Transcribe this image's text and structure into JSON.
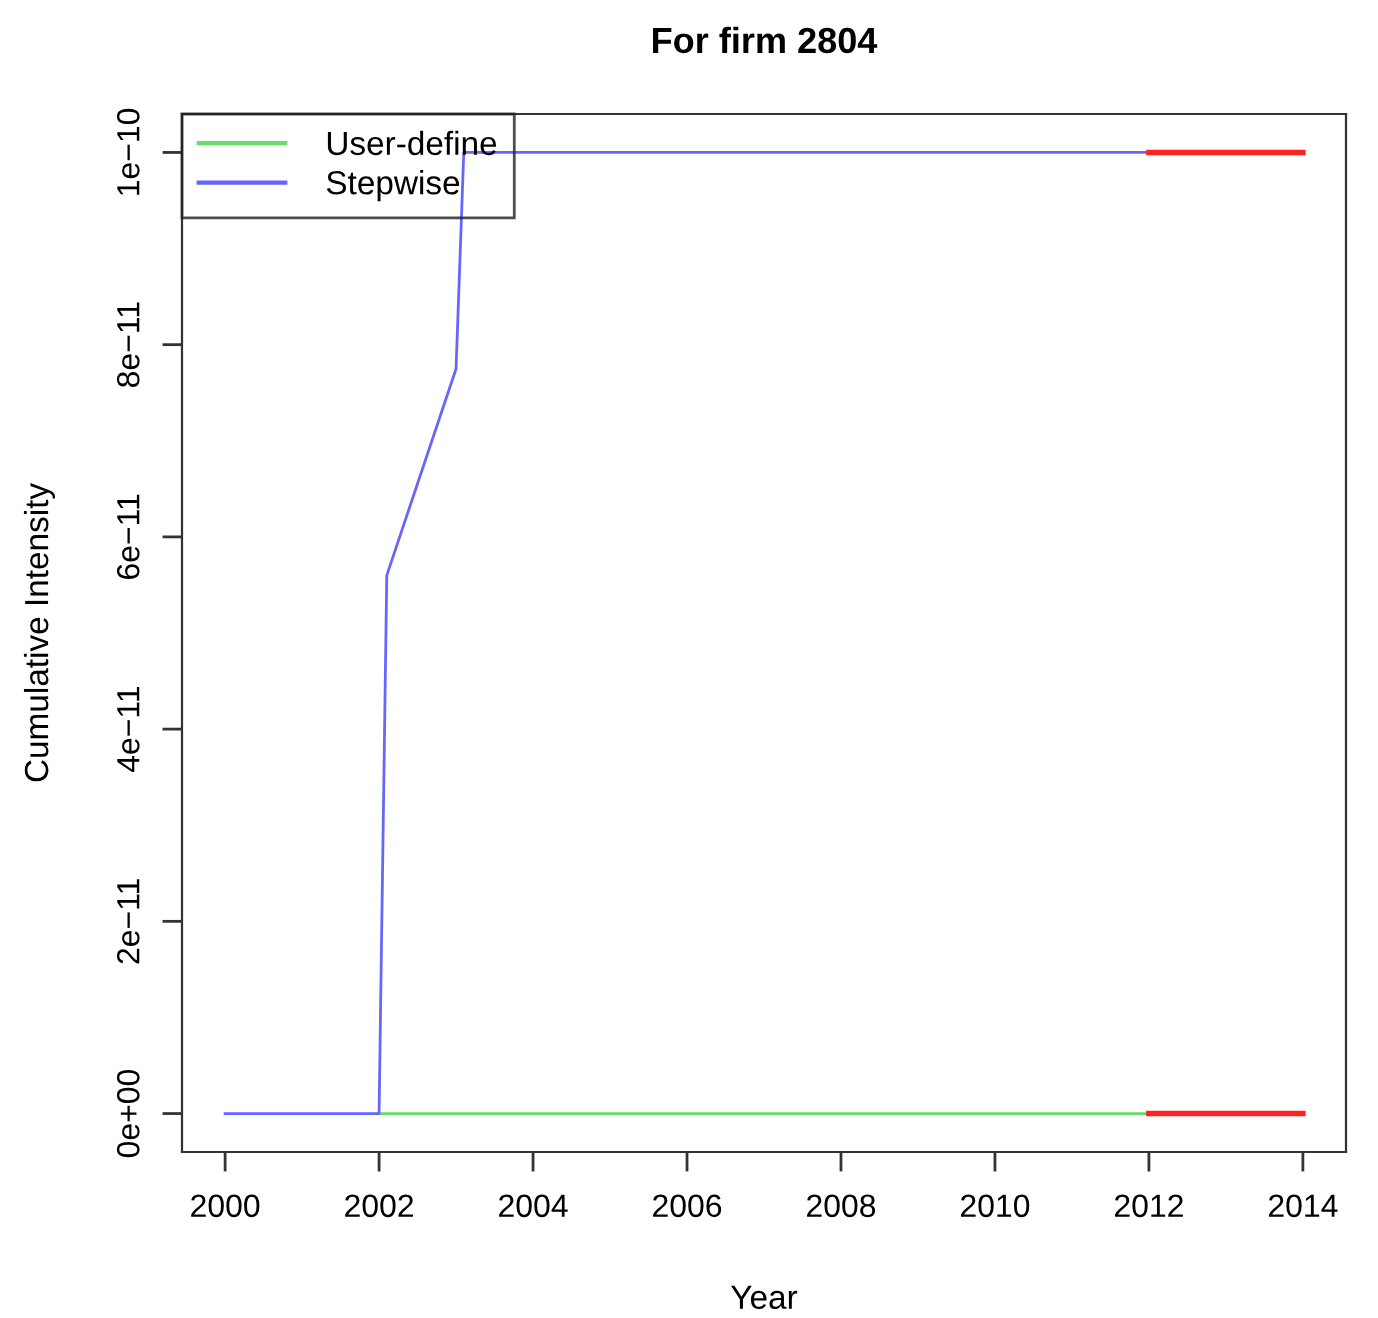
{
  "chart_data": {
    "type": "line",
    "title": "For firm 2804",
    "xlabel": "Year",
    "ylabel": "Cumulative Intensity",
    "series": [
      {
        "name": "User-define",
        "color": "#66dd66",
        "x": [
          2002,
          2012
        ],
        "values": [
          0,
          0
        ]
      },
      {
        "name": "Stepwise",
        "color": "#6666ff",
        "x": [
          2000,
          2002,
          2002.1,
          2003,
          2003.1,
          2012
        ],
        "values": [
          0,
          0,
          5.6e-11,
          7.75e-11,
          1e-10,
          1e-10
        ]
      },
      {
        "color": "#ff2222",
        "x": [
          2012,
          2014
        ],
        "values": [
          0,
          0
        ]
      },
      {
        "color": "#ff2222",
        "x": [
          2012,
          2014
        ],
        "values": [
          1e-10,
          1e-10
        ]
      }
    ],
    "xlim": [
      1999.44,
      2014.56
    ],
    "xticks": [
      2000,
      2002,
      2004,
      2006,
      2008,
      2010,
      2012,
      2014
    ],
    "ylim": [
      -4e-12,
      1.04e-10
    ],
    "yticks": [
      {
        "value": 0,
        "label": "0e+00"
      },
      {
        "value": 2e-11,
        "label": "2e−11"
      },
      {
        "value": 4e-11,
        "label": "4e−11"
      },
      {
        "value": 6e-11,
        "label": "6e−11"
      },
      {
        "value": 8e-11,
        "label": "8e−11"
      },
      {
        "value": 1e-10,
        "label": "1e−10"
      }
    ],
    "grid": false,
    "legend": "top left",
    "marker": "none",
    "line_style": "solid"
  }
}
